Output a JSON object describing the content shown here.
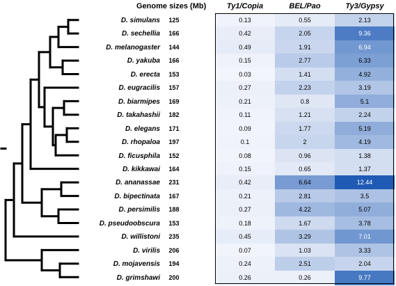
{
  "headers": {
    "genome_sizes": "Genome sizes (Mb)",
    "te_classes": [
      "Ty1/Copia",
      "BEL/Pao",
      "Ty3/Gypsy"
    ]
  },
  "rows": [
    {
      "species": "D. simulans",
      "genome_size": "125",
      "values": [
        "0.13",
        "0.55",
        "2.13"
      ]
    },
    {
      "species": "D. sechellia",
      "genome_size": "166",
      "values": [
        "0.42",
        "2.05",
        "9.36"
      ]
    },
    {
      "species": "D. melanogaster",
      "genome_size": "144",
      "values": [
        "0.49",
        "1.91",
        "6.94"
      ]
    },
    {
      "species": "D. yakuba",
      "genome_size": "166",
      "values": [
        "0.15",
        "2.77",
        "6.33"
      ]
    },
    {
      "species": "D. erecta",
      "genome_size": "153",
      "values": [
        "0.03",
        "1.41",
        "4.92"
      ]
    },
    {
      "species": "D. eugracilis",
      "genome_size": "157",
      "values": [
        "0.27",
        "2.23",
        "3.19"
      ]
    },
    {
      "species": "D. biarmipes",
      "genome_size": "169",
      "values": [
        "0.21",
        "0.8",
        "5.1"
      ]
    },
    {
      "species": "D. takahashii",
      "genome_size": "182",
      "values": [
        "0.11",
        "1.21",
        "2.24"
      ]
    },
    {
      "species": "D. elegans",
      "genome_size": "171",
      "values": [
        "0.09",
        "1.77",
        "5.19"
      ]
    },
    {
      "species": "D. rhopaloa",
      "genome_size": "197",
      "values": [
        "0.1",
        "2",
        "4.19"
      ]
    },
    {
      "species": "D. ficusphila",
      "genome_size": "152",
      "values": [
        "0.08",
        "0.96",
        "1.38"
      ]
    },
    {
      "species": "D. kikkawai",
      "genome_size": "164",
      "values": [
        "0.15",
        "0.65",
        "1.37"
      ]
    },
    {
      "species": "D. ananassae",
      "genome_size": "231",
      "values": [
        "0.42",
        "6.64",
        "12.44"
      ]
    },
    {
      "species": "D. bipectinata",
      "genome_size": "167",
      "values": [
        "0.21",
        "2.81",
        "3.5"
      ]
    },
    {
      "species": "D. persimilis",
      "genome_size": "188",
      "values": [
        "0.27",
        "4.22",
        "5.07"
      ]
    },
    {
      "species": "D. pseudoobscura",
      "genome_size": "153",
      "values": [
        "0.18",
        "1.67",
        "3.78"
      ]
    },
    {
      "species": "D. willistoni",
      "genome_size": "235",
      "values": [
        "0.45",
        "3.29",
        "7.01"
      ]
    },
    {
      "species": "D. virilis",
      "genome_size": "206",
      "values": [
        "0.07",
        "1.03",
        "3.33"
      ]
    },
    {
      "species": "D. mojavensis",
      "genome_size": "194",
      "values": [
        "0.24",
        "2.51",
        "2.04"
      ]
    },
    {
      "species": "D. grimshawi",
      "genome_size": "200",
      "values": [
        "0.26",
        "0.26",
        "9.77"
      ]
    }
  ],
  "colors": {
    "heat_low": "#f4f6fc",
    "heat_high": "#1f5bb5",
    "text_dark": "#000000",
    "text_light": "#ffffff",
    "tree_line": "#000000"
  }
}
